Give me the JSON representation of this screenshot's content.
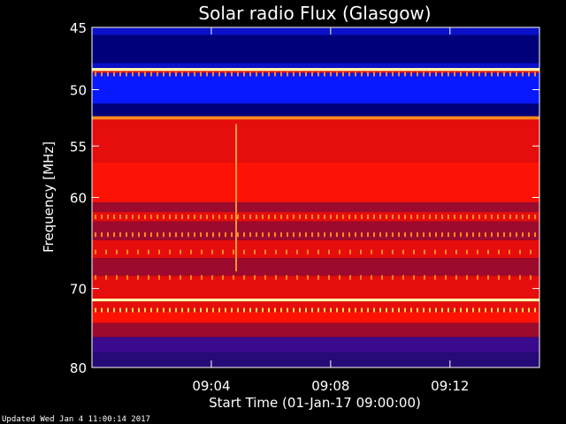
{
  "updated_text": "Updated Wed Jan  4 11:00:14 2017",
  "chart_data": {
    "type": "heatmap",
    "title": "Solar radio Flux (Glasgow)",
    "xlabel": "Start Time (01-Jan-17 09:00:00)",
    "ylabel": "Frequency [MHz]",
    "y_scale": "log",
    "ylim": [
      80,
      45
    ],
    "xlim": [
      "09:00:00",
      "09:15:00"
    ],
    "x_ticks": [
      "09:04",
      "09:08",
      "09:12"
    ],
    "y_ticks": [
      45,
      50,
      55,
      60,
      70,
      80
    ],
    "colormap": "red-temperature (black→blue→red→orange→yellow→white)",
    "bands": [
      {
        "f_from": 45.0,
        "f_to": 45.6,
        "level": "blue"
      },
      {
        "f_from": 45.6,
        "f_to": 47.8,
        "level": "deep-blue"
      },
      {
        "f_from": 47.8,
        "f_to": 48.2,
        "level": "blue"
      },
      {
        "f_from": 48.2,
        "f_to": 48.45,
        "level": "light-yellow"
      },
      {
        "f_from": 48.45,
        "f_to": 48.6,
        "level": "red"
      },
      {
        "f_from": 48.6,
        "f_to": 51.2,
        "level": "bright-blue"
      },
      {
        "f_from": 51.2,
        "f_to": 52.3,
        "level": "deep-blue"
      },
      {
        "f_from": 52.3,
        "f_to": 52.6,
        "level": "orange"
      },
      {
        "f_from": 52.6,
        "f_to": 53.0,
        "level": "red"
      },
      {
        "f_from": 53.0,
        "f_to": 56.5,
        "level": "red"
      },
      {
        "f_from": 56.5,
        "f_to": 60.5,
        "level": "bright-red"
      },
      {
        "f_from": 60.5,
        "f_to": 61.5,
        "level": "dark-red"
      },
      {
        "f_from": 61.5,
        "f_to": 62.5,
        "level": "red"
      },
      {
        "f_from": 62.5,
        "f_to": 64.5,
        "level": "dark-red"
      },
      {
        "f_from": 64.5,
        "f_to": 66.5,
        "level": "red"
      },
      {
        "f_from": 66.5,
        "f_to": 68.5,
        "level": "dark-red"
      },
      {
        "f_from": 68.5,
        "f_to": 71.2,
        "level": "red"
      },
      {
        "f_from": 71.2,
        "f_to": 71.55,
        "level": "light-yellow"
      },
      {
        "f_from": 71.55,
        "f_to": 72.8,
        "level": "red"
      },
      {
        "f_from": 72.8,
        "f_to": 74.2,
        "level": "bright-red"
      },
      {
        "f_from": 74.2,
        "f_to": 76.0,
        "level": "dark-red"
      },
      {
        "f_from": 76.0,
        "f_to": 78.0,
        "level": "purple"
      },
      {
        "f_from": 78.0,
        "f_to": 80.0,
        "level": "deep-purple"
      }
    ],
    "spike_rows": [
      {
        "freq": 48.7,
        "level": "orange",
        "spacing": "dense"
      },
      {
        "freq": 62.0,
        "level": "orange",
        "spacing": "dense"
      },
      {
        "freq": 63.9,
        "level": "orange",
        "spacing": "dense"
      },
      {
        "freq": 65.8,
        "level": "orange",
        "spacing": "sparse"
      },
      {
        "freq": 68.7,
        "level": "orange",
        "spacing": "sparse"
      },
      {
        "freq": 72.6,
        "level": "yellow",
        "spacing": "dense"
      }
    ],
    "burst": {
      "time": "09:04:50",
      "freq_from": 53.0,
      "freq_to": 68.0
    }
  }
}
